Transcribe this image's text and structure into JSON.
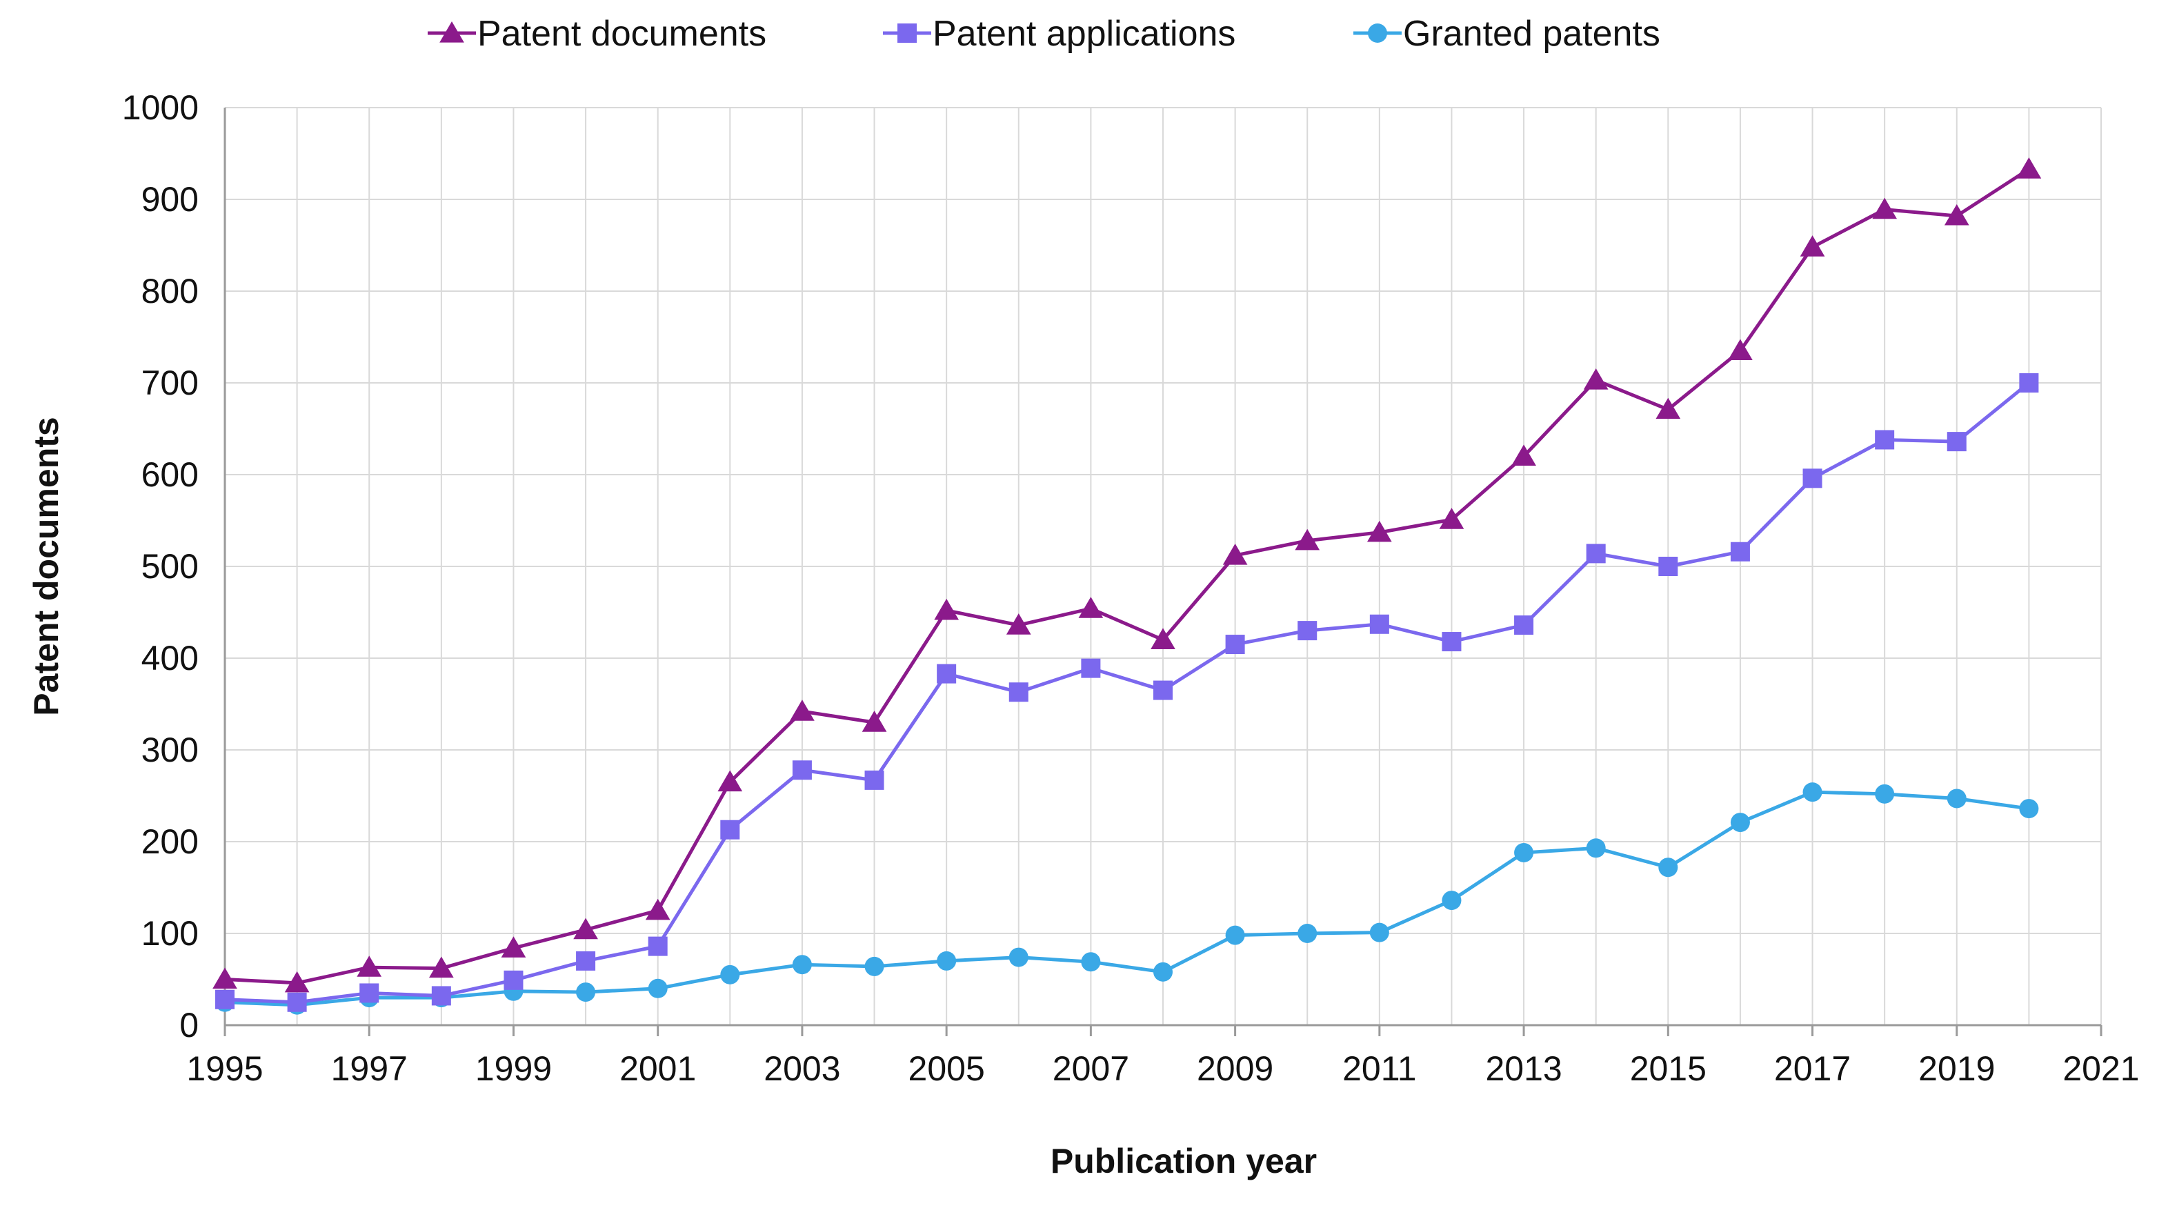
{
  "chart_data": {
    "type": "line",
    "title": "",
    "xlabel": "Publication year",
    "ylabel": "Patent documents",
    "xlim": [
      1995,
      2021
    ],
    "ylim": [
      0,
      1000
    ],
    "x_ticks": [
      "1995",
      "1997",
      "1999",
      "2001",
      "2003",
      "2005",
      "2007",
      "2009",
      "2011",
      "2013",
      "2015",
      "2017",
      "2019",
      "2021"
    ],
    "y_ticks": [
      "0",
      "100",
      "200",
      "300",
      "400",
      "500",
      "600",
      "700",
      "800",
      "900",
      "1000"
    ],
    "legend_position": "top-center",
    "grid": true,
    "x": [
      1995,
      1996,
      1997,
      1998,
      1999,
      2000,
      2001,
      2002,
      2003,
      2004,
      2005,
      2006,
      2007,
      2008,
      2009,
      2010,
      2011,
      2012,
      2013,
      2014,
      2015,
      2016,
      2017,
      2018,
      2019,
      2020
    ],
    "series": [
      {
        "name": "Patent documents",
        "color": "#8B1A8B",
        "marker": "triangle",
        "values": [
          50,
          46,
          63,
          62,
          84,
          104,
          125,
          265,
          342,
          330,
          452,
          436,
          454,
          420,
          512,
          528,
          537,
          551,
          620,
          703,
          671,
          735,
          848,
          889,
          882,
          933
        ]
      },
      {
        "name": "Patent applications",
        "color": "#7B68EE",
        "marker": "square",
        "values": [
          28,
          25,
          35,
          32,
          49,
          70,
          86,
          213,
          278,
          267,
          383,
          363,
          389,
          365,
          415,
          430,
          437,
          418,
          436,
          514,
          500,
          516,
          596,
          638,
          636,
          700
        ]
      },
      {
        "name": "Granted patents",
        "color": "#3AA8E6",
        "marker": "circle",
        "values": [
          25,
          22,
          30,
          30,
          37,
          36,
          40,
          55,
          66,
          64,
          70,
          74,
          69,
          58,
          98,
          100,
          101,
          136,
          188,
          193,
          172,
          221,
          254,
          252,
          247,
          236
        ]
      }
    ]
  }
}
